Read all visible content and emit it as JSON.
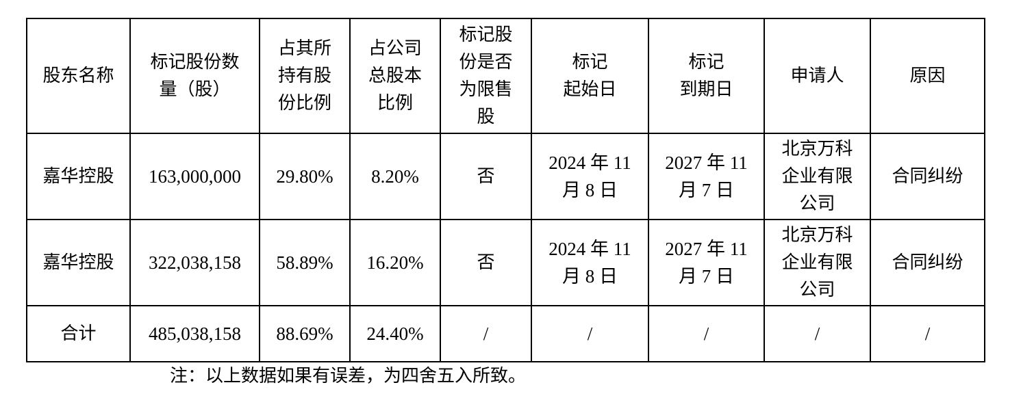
{
  "table": {
    "headers": [
      "股东名称",
      "标记股份数\n量（股）",
      "占其所\n持有股\n份比例",
      "占公司\n总股本\n比例",
      "标记股\n份是否\n为限售\n股",
      "标记\n起始日",
      "标记\n到期日",
      "申请人",
      "原因"
    ],
    "rows": [
      [
        "嘉华控股",
        "163,000,000",
        "29.80%",
        "8.20%",
        "否",
        "2024 年 11\n月 8 日",
        "2027 年 11\n月 7 日",
        "北京万科\n企业有限\n公司",
        "合同纠纷"
      ],
      [
        "嘉华控股",
        "322,038,158",
        "58.89%",
        "16.20%",
        "否",
        "2024 年 11\n月 8 日",
        "2027 年 11\n月 7 日",
        "北京万科\n企业有限\n公司",
        "合同纠纷"
      ]
    ],
    "total": [
      "合计",
      "485,038,158",
      "88.69%",
      "24.40%",
      "/",
      "/",
      "/",
      "/",
      "/"
    ]
  },
  "note": "注：以上数据如果有误差，为四舍五入所致。"
}
